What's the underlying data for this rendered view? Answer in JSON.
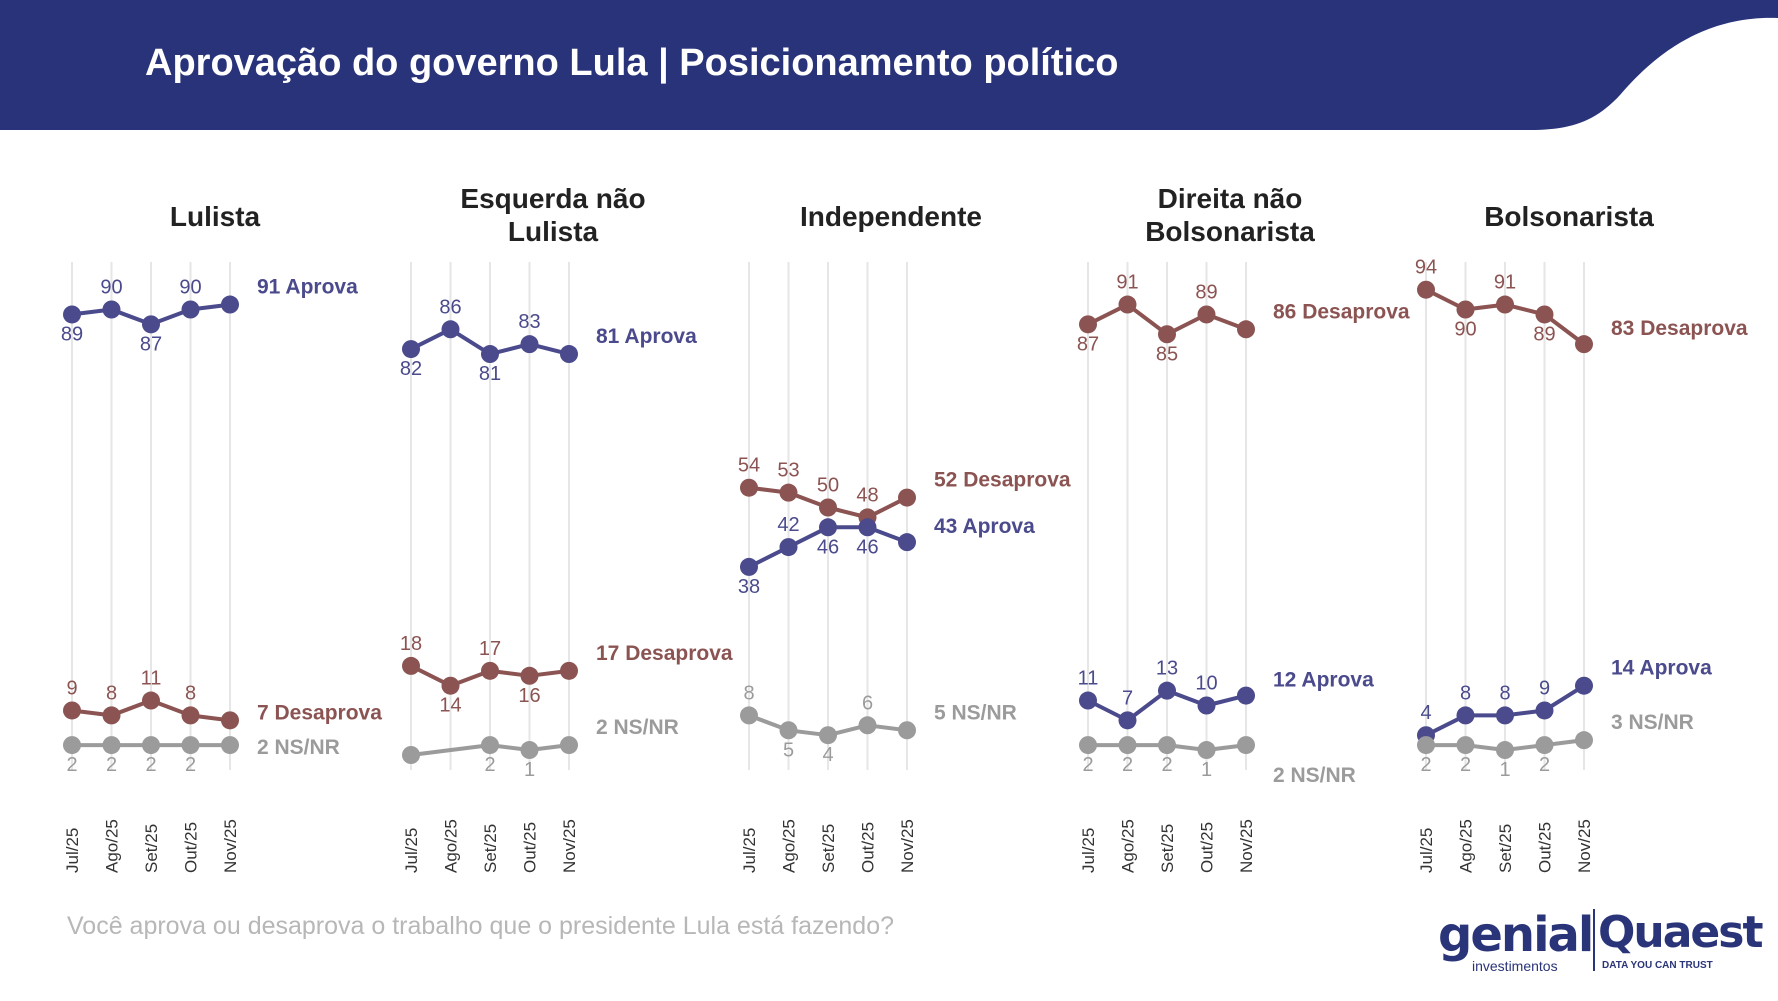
{
  "header": {
    "title": "Aprovação do governo Lula | Posicionamento político"
  },
  "footer": {
    "question": "Você aprova ou desaprova o trabalho que o presidente Lula está fazendo?",
    "logo_genial": "genial",
    "logo_genial_sub": "investimentos",
    "logo_quaest": "Quaest",
    "logo_quaest_sub": "DATA YOU CAN TRUST"
  },
  "colors": {
    "header_bg": "#28337a",
    "aprova": "#4a4a8c",
    "desaprova": "#8b5452",
    "nsnr": "#9b9b9b",
    "gridline": "#e6e6e6",
    "title_text": "#222222"
  },
  "chart_data": [
    {
      "type": "line",
      "title": "Lulista",
      "categories": [
        "Jul/25",
        "Ago/25",
        "Set/25",
        "Out/25",
        "Nov/25"
      ],
      "series": [
        {
          "name": "Aprova",
          "values": [
            89,
            90,
            87,
            90,
            91
          ],
          "end_label": "91 Aprova"
        },
        {
          "name": "Desaprova",
          "values": [
            9,
            8,
            11,
            8,
            7
          ],
          "end_label": "7 Desaprova"
        },
        {
          "name": "NS/NR",
          "values": [
            2,
            2,
            2,
            2,
            2
          ],
          "end_label": "2 NS/NR"
        }
      ]
    },
    {
      "type": "line",
      "title": "Esquerda não Lulista",
      "categories": [
        "Jul/25",
        "Ago/25",
        "Set/25",
        "Out/25",
        "Nov/25"
      ],
      "series": [
        {
          "name": "Aprova",
          "values": [
            82,
            86,
            81,
            83,
            81
          ],
          "end_label": "81 Aprova"
        },
        {
          "name": "Desaprova",
          "values": [
            18,
            14,
            17,
            16,
            17
          ],
          "end_label": "17 Desaprova"
        },
        {
          "name": "NS/NR",
          "values": [
            0,
            null,
            2,
            1,
            2
          ],
          "end_label": "2 NS/NR"
        }
      ]
    },
    {
      "type": "line",
      "title": "Independente",
      "categories": [
        "Jul/25",
        "Ago/25",
        "Set/25",
        "Out/25",
        "Nov/25"
      ],
      "series": [
        {
          "name": "Desaprova",
          "values": [
            54,
            53,
            50,
            48,
            52
          ],
          "end_label": "52 Desaprova"
        },
        {
          "name": "Aprova",
          "values": [
            38,
            42,
            46,
            46,
            43
          ],
          "end_label": "43 Aprova"
        },
        {
          "name": "NS/NR",
          "values": [
            8,
            5,
            4,
            6,
            5
          ],
          "end_label": "5 NS/NR"
        }
      ]
    },
    {
      "type": "line",
      "title": "Direita não Bolsonarista",
      "categories": [
        "Jul/25",
        "Ago/25",
        "Set/25",
        "Out/25",
        "Nov/25"
      ],
      "series": [
        {
          "name": "Desaprova",
          "values": [
            87,
            91,
            85,
            89,
            86
          ],
          "end_label": "86 Desaprova"
        },
        {
          "name": "Aprova",
          "values": [
            11,
            7,
            13,
            10,
            12
          ],
          "end_label": "12 Aprova"
        },
        {
          "name": "NS/NR",
          "values": [
            2,
            2,
            2,
            1,
            2
          ],
          "end_label": "2 NS/NR"
        }
      ]
    },
    {
      "type": "line",
      "title": "Bolsonarista",
      "categories": [
        "Jul/25",
        "Ago/25",
        "Set/25",
        "Out/25",
        "Nov/25"
      ],
      "series": [
        {
          "name": "Desaprova",
          "values": [
            94,
            90,
            91,
            89,
            83
          ],
          "end_label": "83 Desaprova"
        },
        {
          "name": "Aprova",
          "values": [
            4,
            8,
            8,
            9,
            14
          ],
          "end_label": "14 Aprova"
        },
        {
          "name": "NS/NR",
          "values": [
            2,
            2,
            1,
            2,
            3
          ],
          "end_label": "3 NS/NR"
        }
      ]
    }
  ]
}
